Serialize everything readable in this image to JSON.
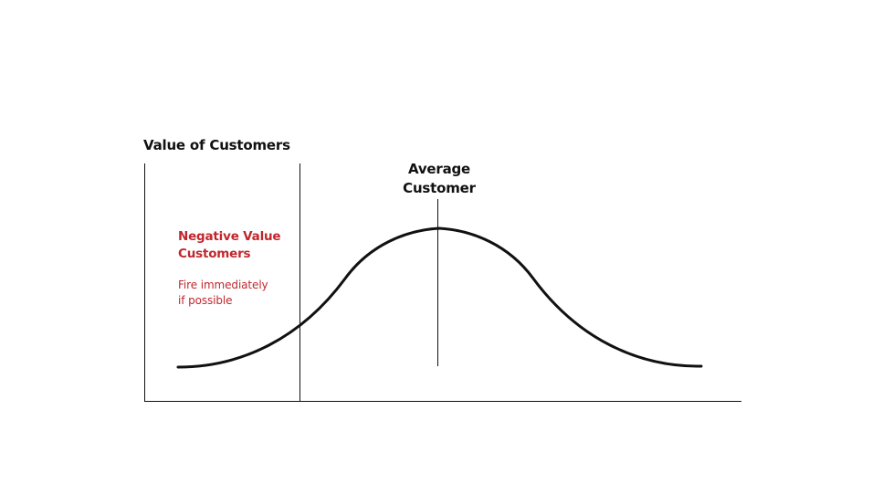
{
  "diagram": {
    "axis_title": "Value of Customers",
    "average_label": [
      "Average",
      "Customer"
    ],
    "negative_segment": {
      "title": [
        "Negative Value",
        "Customers"
      ],
      "note": [
        "Fire immediately",
        "if possible"
      ]
    }
  },
  "colors": {
    "ink": "#111111",
    "accent": "#c0272d",
    "background": "#ffffff"
  }
}
